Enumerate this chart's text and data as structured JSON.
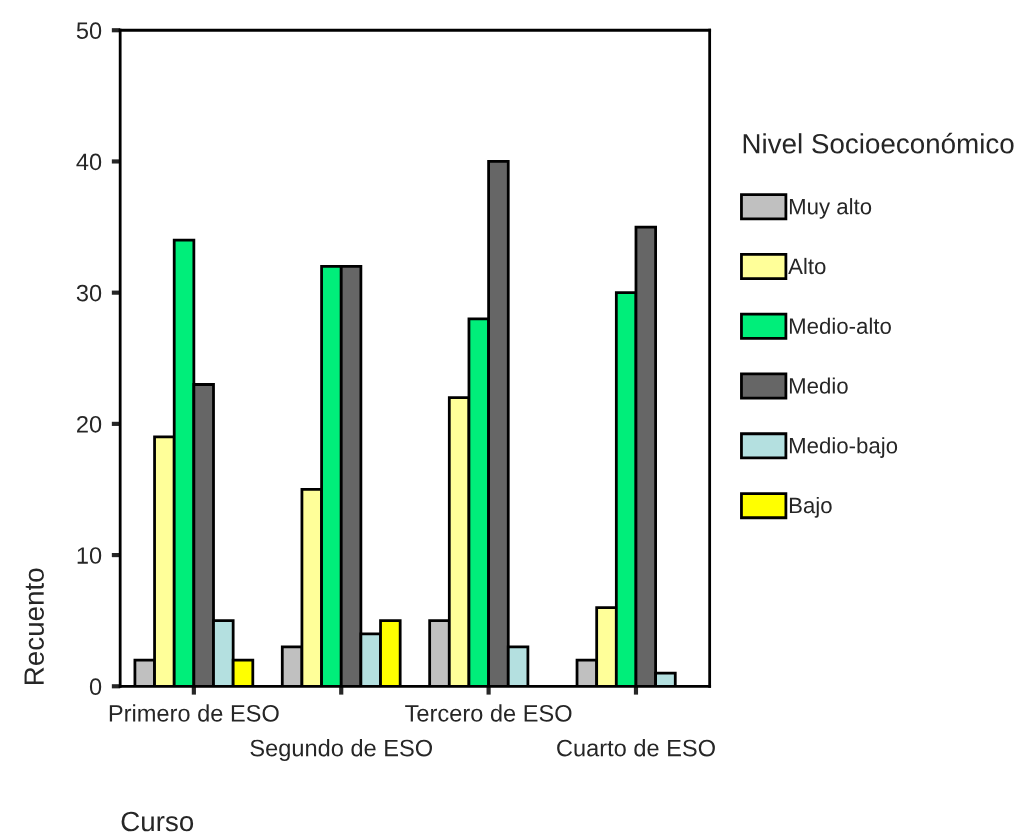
{
  "chart_data": {
    "type": "bar",
    "xlabel": "Curso",
    "ylabel": "Recuento",
    "legend_title": "Nivel Socioeconómico",
    "categories": [
      "Primero de ESO",
      "Segundo de ESO",
      "Tercero de ESO",
      "Cuarto de ESO"
    ],
    "series": [
      {
        "name": "Muy alto",
        "color": "#c0c0c0",
        "values": [
          2,
          3,
          5,
          2
        ]
      },
      {
        "name": "Alto",
        "color": "#ffff99",
        "values": [
          19,
          15,
          22,
          6
        ]
      },
      {
        "name": "Medio-alto",
        "color": "#00ee7a",
        "values": [
          34,
          32,
          28,
          30
        ]
      },
      {
        "name": "Medio",
        "color": "#666666",
        "values": [
          23,
          32,
          40,
          35
        ]
      },
      {
        "name": "Medio-bajo",
        "color": "#b4e0e0",
        "values": [
          5,
          4,
          3,
          1
        ]
      },
      {
        "name": "Bajo",
        "color": "#ffff00",
        "values": [
          2,
          5,
          null,
          null
        ]
      }
    ],
    "ylim": [
      0,
      50
    ],
    "yticks": [
      0,
      10,
      20,
      30,
      40,
      50
    ],
    "grid": false,
    "legend": "right"
  }
}
